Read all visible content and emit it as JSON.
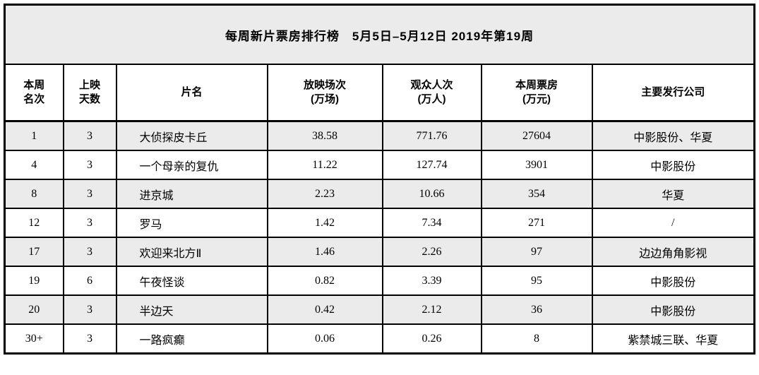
{
  "title": "每周新片票房排行榜　5月5日–5月12日 2019年第19周",
  "table": {
    "columns": [
      {
        "label": "本周\n名次"
      },
      {
        "label": "上映\n天数"
      },
      {
        "label": "片名"
      },
      {
        "label": "放映场次\n(万场)"
      },
      {
        "label": "观众人次\n(万人)"
      },
      {
        "label": "本周票房\n(万元)"
      },
      {
        "label": "主要发行公司"
      }
    ],
    "rows": [
      [
        "1",
        "3",
        "大侦探皮卡丘",
        "38.58",
        "771.76",
        "27604",
        "中影股份、华夏"
      ],
      [
        "4",
        "3",
        "一个母亲的复仇",
        "11.22",
        "127.74",
        "3901",
        "中影股份"
      ],
      [
        "8",
        "3",
        "进京城",
        "2.23",
        "10.66",
        "354",
        "华夏"
      ],
      [
        "12",
        "3",
        "罗马",
        "1.42",
        "7.34",
        "271",
        "/"
      ],
      [
        "17",
        "3",
        "欢迎来北方Ⅱ",
        "1.46",
        "2.26",
        "97",
        "边边角角影视"
      ],
      [
        "19",
        "6",
        "午夜怪谈",
        "0.82",
        "3.39",
        "95",
        "中影股份"
      ],
      [
        "20",
        "3",
        "半边天",
        "0.42",
        "2.12",
        "36",
        "中影股份"
      ],
      [
        "30+",
        "3",
        "一路疯癫",
        "0.06",
        "0.26",
        "8",
        "紫禁城三联、华夏"
      ]
    ]
  },
  "colors": {
    "border": "#000000",
    "shaded_row_bg": "#ebebeb",
    "title_bg": "#ebebeb",
    "text": "#000000"
  }
}
